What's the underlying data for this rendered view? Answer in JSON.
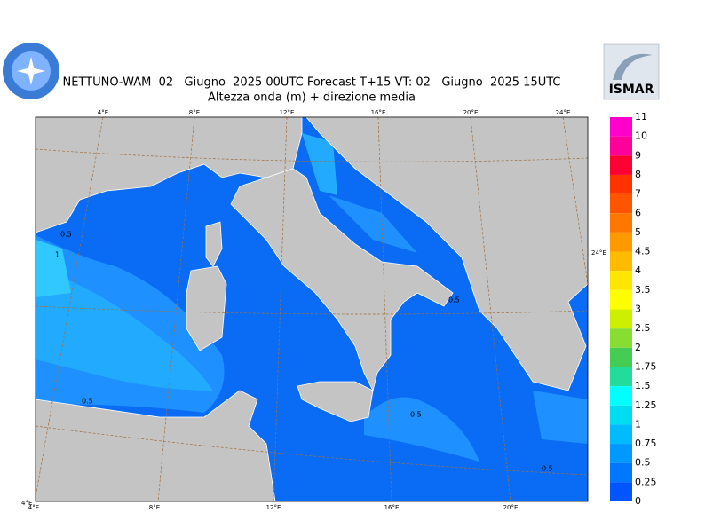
{
  "header": {
    "title": "NETTUNO-WAM  02   Giugno  2025 00UTC Forecast T+15 VT: 02   Giugno  2025 15UTC",
    "subtitle": "Altezza onda (m) + direzione media",
    "logo_right": "ISMAR"
  },
  "map": {
    "top_lon_labels": [
      "4°E",
      "8°E",
      "12°E",
      "16°E",
      "20°E",
      "24°E"
    ],
    "bottom_lon_labels": [
      "4°E",
      "8°E",
      "12°E",
      "16°E",
      "20°E"
    ],
    "side_label": "24°E",
    "corner_label": "4°E",
    "contour_labels": [
      "0.5",
      "1",
      "0.5",
      "0.5",
      "0.5",
      "0.5"
    ]
  },
  "legend": {
    "labels": [
      "11",
      "10",
      "9",
      "8",
      "7",
      "6",
      "5",
      "4.5",
      "4",
      "3.5",
      "3",
      "2.5",
      "2",
      "1.75",
      "1.5",
      "1.25",
      "1",
      "0.75",
      "0.5",
      "0.25",
      "0"
    ],
    "colors": [
      "#ff00cc",
      "#ff0099",
      "#ff0033",
      "#ff3300",
      "#ff5500",
      "#ff7700",
      "#ff9900",
      "#ffbb00",
      "#ffe600",
      "#ffff00",
      "#ccf000",
      "#88dd33",
      "#44cc55",
      "#22dd99",
      "#00ffff",
      "#00ddf0",
      "#00bbff",
      "#0099ff",
      "#0077ff",
      "#0055ff"
    ]
  }
}
